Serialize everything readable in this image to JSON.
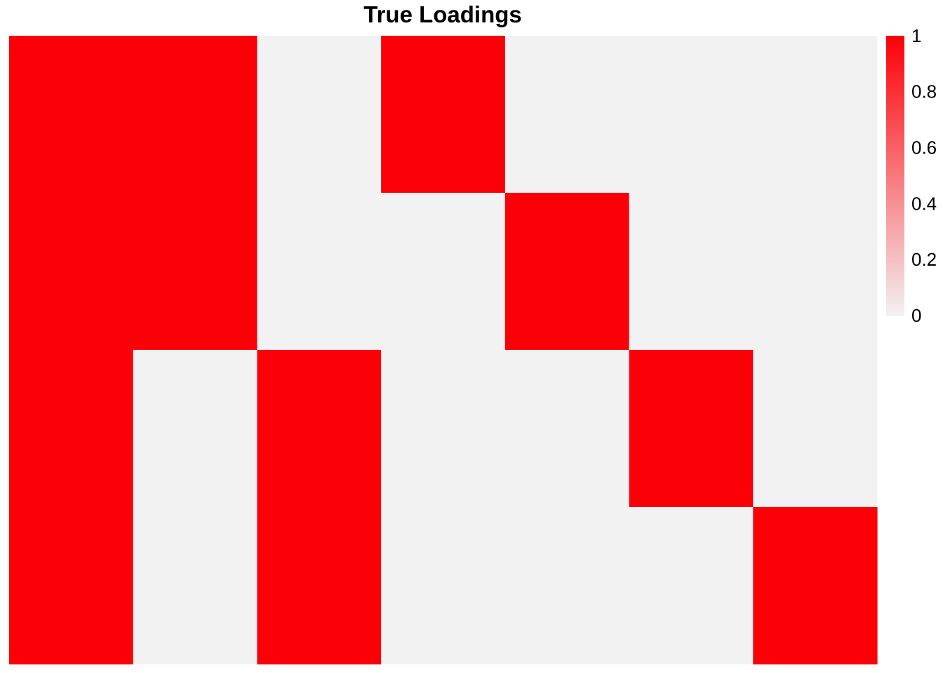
{
  "chart_data": {
    "type": "heatmap",
    "title": "True Loadings",
    "xlabel": "",
    "ylabel": "",
    "rows": 4,
    "columns": 7,
    "values": [
      [
        1,
        1,
        0,
        1,
        0,
        0,
        0
      ],
      [
        1,
        1,
        0,
        0,
        1,
        0,
        0
      ],
      [
        1,
        0,
        1,
        0,
        0,
        1,
        0
      ],
      [
        1,
        0,
        1,
        0,
        0,
        0,
        1
      ]
    ],
    "color_scale": {
      "min": 0,
      "max": 1,
      "low_color": "#f2f2f2",
      "high_color": "#fb0007"
    },
    "legend": {
      "position": "right",
      "ticks": [
        "1",
        "0.8",
        "0.6",
        "0.4",
        "0.2",
        "0"
      ]
    },
    "grid": false
  }
}
